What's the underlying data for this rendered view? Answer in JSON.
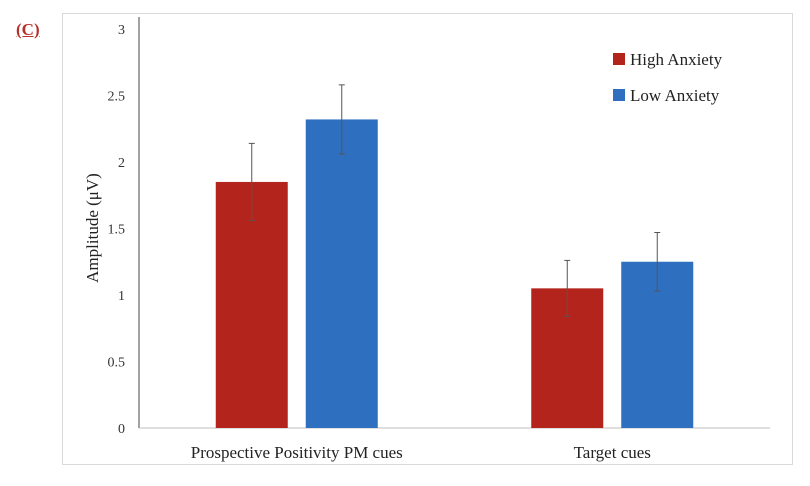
{
  "panel_label": "(C)",
  "chart_data": {
    "type": "bar",
    "categories": [
      "Prospective Positivity PM cues",
      "Target cues"
    ],
    "series": [
      {
        "name": "High Anxiety",
        "color": "#b3241c",
        "values": [
          1.85,
          1.05
        ],
        "errors": [
          0.29,
          0.21
        ]
      },
      {
        "name": "Low Anxiety",
        "color": "#2f6fbf",
        "values": [
          2.32,
          1.25
        ],
        "errors": [
          0.26,
          0.22
        ]
      }
    ],
    "xlabel": "",
    "ylabel": "Amplitude (μV)",
    "ylim": [
      0,
      3
    ],
    "yticks": [
      "0",
      "0.5",
      "1",
      "1.5",
      "2",
      "2.5",
      "3"
    ],
    "grid": false,
    "legend": "top-right"
  }
}
